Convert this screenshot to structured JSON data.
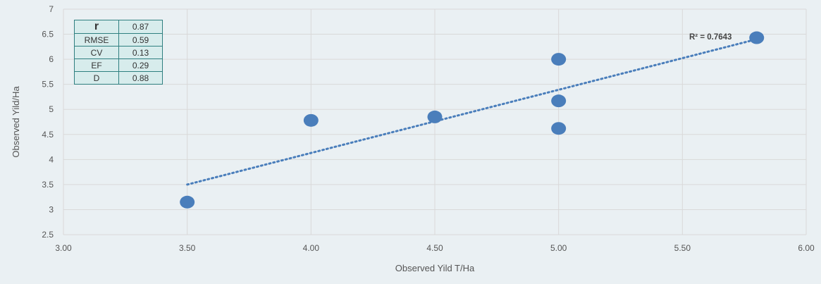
{
  "chart_data": {
    "type": "scatter",
    "xlabel": "Observed Yild T/Ha",
    "ylabel": "Observed Yild/Ha",
    "xlim": [
      3.0,
      6.0
    ],
    "ylim": [
      2.5,
      7.0
    ],
    "x_ticks": [
      "3.00",
      "3.50",
      "4.00",
      "4.50",
      "5.00",
      "5.50",
      "6.00"
    ],
    "y_ticks": [
      "2.5",
      "3",
      "3.5",
      "4",
      "4.5",
      "5",
      "5.5",
      "6",
      "6.5",
      "7"
    ],
    "grid": true,
    "series": [
      {
        "points": [
          {
            "x": 3.5,
            "y": 3.15
          },
          {
            "x": 4.0,
            "y": 4.78
          },
          {
            "x": 4.5,
            "y": 4.85
          },
          {
            "x": 5.0,
            "y": 6.0
          },
          {
            "x": 5.0,
            "y": 5.17
          },
          {
            "x": 5.0,
            "y": 4.62
          },
          {
            "x": 5.8,
            "y": 6.43
          }
        ]
      }
    ],
    "trendline": {
      "x_start": 3.5,
      "y_start": 3.5,
      "x_end": 5.8,
      "y_end": 6.4
    },
    "annotation": "R² = 0.7643",
    "point_color": "#4a7ebb"
  },
  "stats_table": [
    {
      "label": "r",
      "value": "0.87"
    },
    {
      "label": "RMSE",
      "value": "0.59"
    },
    {
      "label": "CV",
      "value": "0.13"
    },
    {
      "label": "EF",
      "value": "0.29"
    },
    {
      "label": "D",
      "value": "0.88"
    }
  ]
}
